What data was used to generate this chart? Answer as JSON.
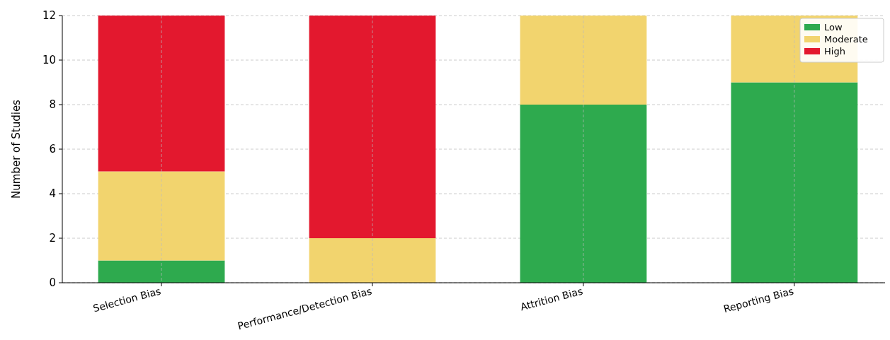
{
  "chart_data": {
    "type": "bar",
    "stacked": true,
    "ylabel": "Number of Studies",
    "categories": [
      "Selection Bias",
      "Performance/Detection Bias",
      "Attrition Bias",
      "Reporting Bias"
    ],
    "series": [
      {
        "name": "Low",
        "color": "#2eaa4e",
        "values": [
          1,
          0,
          8,
          9
        ]
      },
      {
        "name": "Moderate",
        "color": "#f2d46e",
        "values": [
          4,
          2,
          4,
          3
        ]
      },
      {
        "name": "High",
        "color": "#e3182e",
        "values": [
          7,
          10,
          0,
          0
        ]
      }
    ],
    "ylim": [
      0,
      12
    ],
    "yticks": [
      0,
      2,
      4,
      6,
      8,
      10,
      12
    ],
    "grid": true,
    "legend": "top right"
  }
}
